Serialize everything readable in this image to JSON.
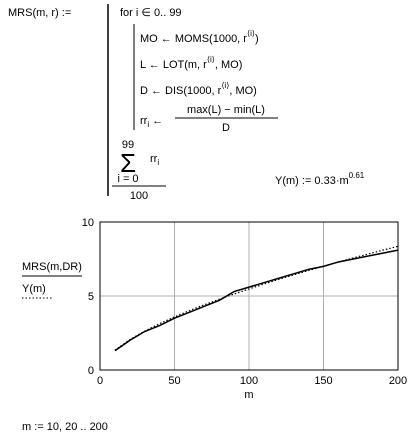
{
  "worksheet": {
    "definition": "MRS(m, r) :=",
    "for_line": "for  i ∈ 0.. 99",
    "body": [
      [
        "MO ← MOMS(1000, r",
        "⟨i⟩",
        ")"
      ],
      [
        "L ← LOT(m, r",
        "⟨i⟩",
        ", MO)"
      ],
      [
        "D ← DIS(1000, r",
        "⟨i⟩",
        ", MO)"
      ]
    ],
    "assign_lhs": "rr",
    "assign_sub": "i",
    "assign_arrow": "←",
    "assign_num": "max(L) − min(L)",
    "assign_den": "D",
    "sum_upper": "99",
    "sum_symbol": "Σ",
    "sum_lower": "i = 0",
    "sum_term": "rr",
    "sum_term_sub": "i",
    "sum_den": "100",
    "fit": [
      "Y(m) := 0.33·m",
      "0.61"
    ],
    "range": "m := 10, 20 .. 200"
  },
  "chart_data": {
    "type": "line",
    "xlabel": "m",
    "x": [
      10,
      20,
      30,
      40,
      50,
      60,
      70,
      80,
      90,
      100,
      110,
      120,
      130,
      140,
      150,
      160,
      170,
      180,
      190,
      200
    ],
    "series": [
      {
        "name": "MRS(m,DR)",
        "color": "#000000",
        "style": "solid",
        "values": [
          1.3,
          2.0,
          2.6,
          3.0,
          3.5,
          3.9,
          4.3,
          4.7,
          5.3,
          5.6,
          5.9,
          6.2,
          6.5,
          6.8,
          7.0,
          7.3,
          7.5,
          7.7,
          7.9,
          8.1
        ]
      },
      {
        "name": "Y(m)",
        "color": "#000000",
        "style": "dotted",
        "values": [
          1.344,
          2.052,
          2.628,
          3.132,
          3.588,
          4.01,
          4.406,
          4.78,
          5.136,
          5.477,
          5.805,
          6.122,
          6.428,
          6.725,
          7.013,
          7.296,
          7.57,
          7.838,
          8.101,
          8.36
        ]
      }
    ],
    "xlim": [
      0,
      200
    ],
    "xticks": [
      0,
      50,
      100,
      150,
      200
    ],
    "ylim": [
      0,
      10
    ],
    "yticks": [
      0,
      5,
      10
    ],
    "grid": true
  }
}
